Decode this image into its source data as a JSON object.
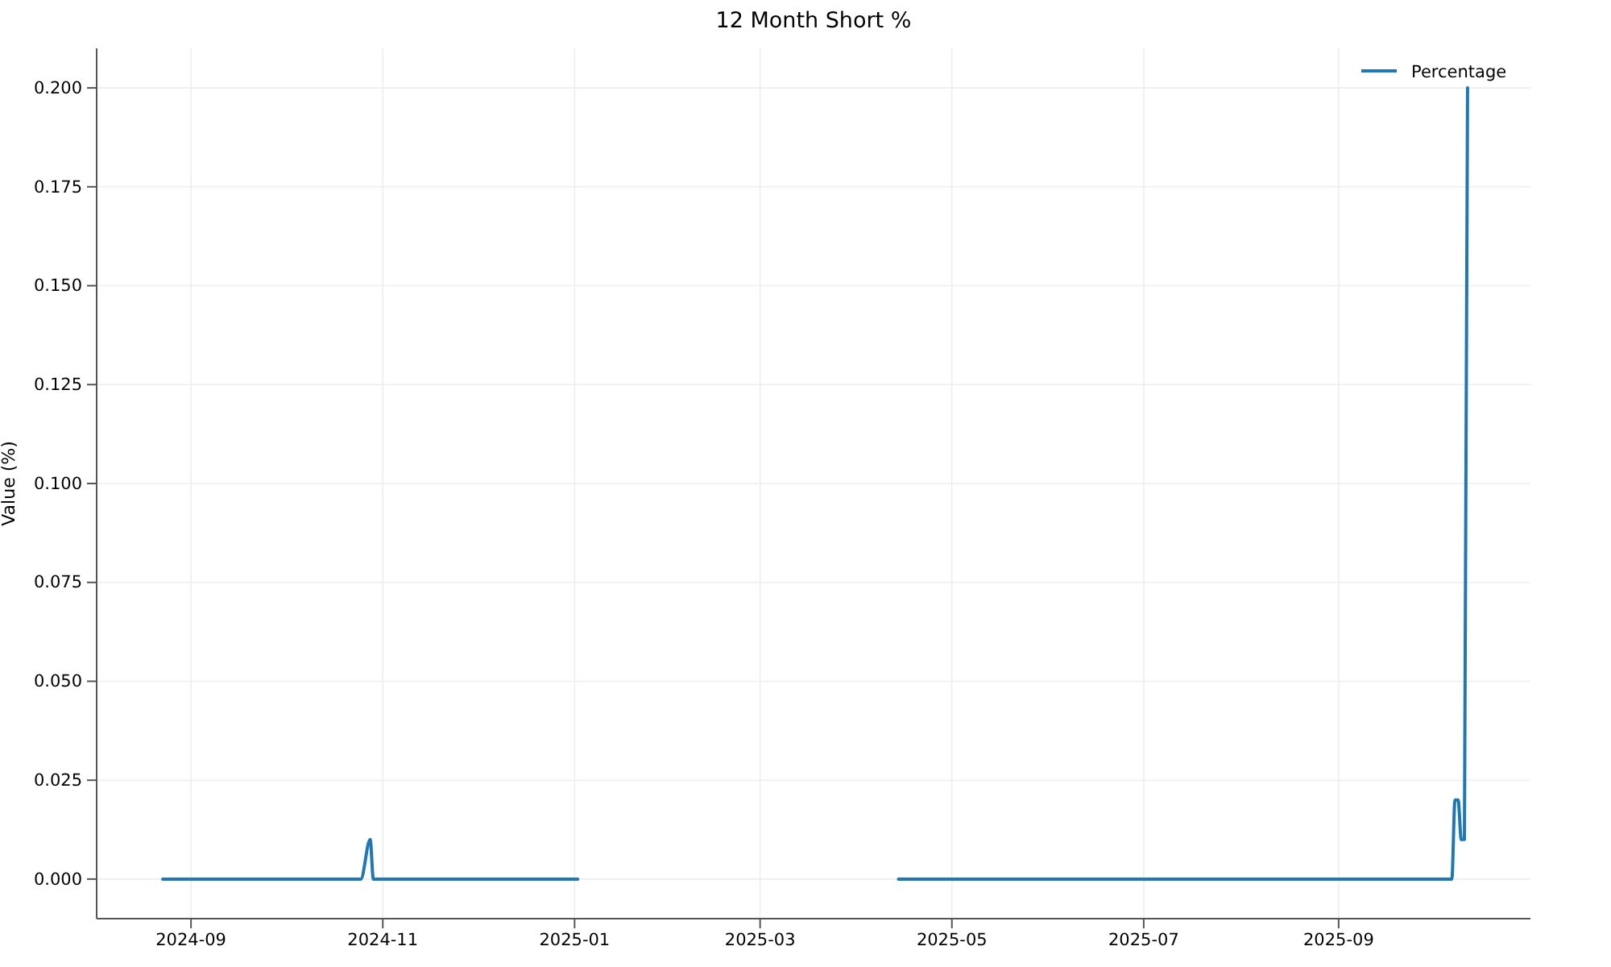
{
  "chart_data": {
    "type": "line",
    "title": "12 Month Short %",
    "ylabel": "Value (%)",
    "x": [
      "2024-08-23",
      "2024-10-25",
      "2024-10-28",
      "2024-10-29",
      "2025-01-02",
      "2025-01-03",
      "2025-04-14",
      "2025-10-07",
      "2025-10-08",
      "2025-10-09",
      "2025-10-10",
      "2025-10-11",
      "2025-10-12"
    ],
    "series": [
      {
        "name": "Percentage",
        "color": "#1f77b4",
        "values": [
          0,
          0,
          0.01,
          0,
          0,
          null,
          0,
          0,
          0.02,
          0.02,
          0.01,
          0.01,
          0.2
        ]
      }
    ],
    "xlim": [
      "2024-08-02",
      "2025-11-01"
    ],
    "xticks": [
      {
        "value": "2024-09-01",
        "label": "2024-09"
      },
      {
        "value": "2024-11-01",
        "label": "2024-11"
      },
      {
        "value": "2025-01-01",
        "label": "2025-01"
      },
      {
        "value": "2025-03-01",
        "label": "2025-03"
      },
      {
        "value": "2025-05-01",
        "label": "2025-05"
      },
      {
        "value": "2025-07-01",
        "label": "2025-07"
      },
      {
        "value": "2025-09-01",
        "label": "2025-09"
      }
    ],
    "ylim": [
      -0.01,
      0.21
    ],
    "yticks": [
      {
        "value": 0,
        "label": "0.000"
      },
      {
        "value": 0.025,
        "label": "0.025"
      },
      {
        "value": 0.05,
        "label": "0.050"
      },
      {
        "value": 0.075,
        "label": "0.075"
      },
      {
        "value": 0.1,
        "label": "0.100"
      },
      {
        "value": 0.125,
        "label": "0.125"
      },
      {
        "value": 0.15,
        "label": "0.150"
      },
      {
        "value": 0.175,
        "label": "0.175"
      },
      {
        "value": 0.2,
        "label": "0.200"
      }
    ],
    "grid": true,
    "legend": "top right",
    "line_style": "solid",
    "marker": "none"
  }
}
